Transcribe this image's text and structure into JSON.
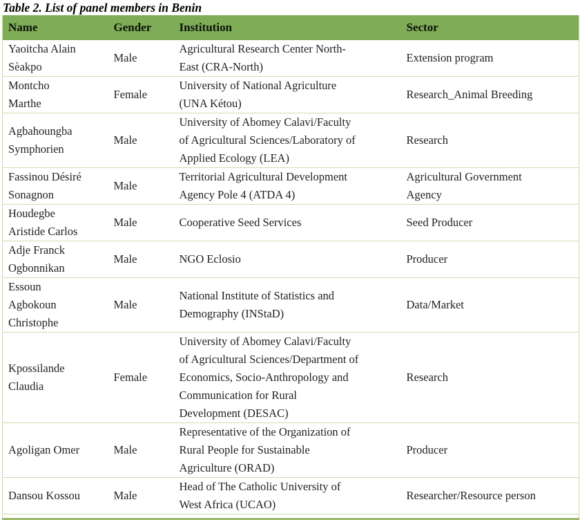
{
  "caption": "Table 2. List of panel members in Benin",
  "table": {
    "columns": [
      "Name",
      "Gender",
      "Institution",
      "Sector"
    ],
    "fields": [
      "name",
      "gender",
      "institution",
      "sector"
    ],
    "rows": [
      {
        "name": "Yaoitcha Alain Sèakpo",
        "gender": "Male",
        "institution": "Agricultural Research Center North-East (CRA-North)",
        "sector": "Extension program"
      },
      {
        "name": "Montcho Marthe",
        "gender": "Female",
        "institution": "University of National Agriculture (UNA Kétou)",
        "sector": "Research_Animal Breeding"
      },
      {
        "name": "Agbahoungba Symphorien",
        "gender": "Male",
        "institution": "University of Abomey Calavi/Faculty of Agricultural Sciences/Laboratory of Applied Ecology (LEA)",
        "sector": "Research"
      },
      {
        "name": "Fassinou Désiré Sonagnon",
        "gender": "Male",
        "institution": "Territorial Agricultural Development Agency Pole 4 (ATDA 4)",
        "sector": "Agricultural Government Agency"
      },
      {
        "name": "Houdegbe Aristide Carlos",
        "gender": "Male",
        "institution": "Cooperative Seed Services",
        "sector": "Seed Producer"
      },
      {
        "name": "Adje Franck Ogbonnikan",
        "gender": "Male",
        "institution": "NGO Eclosio",
        "sector": "Producer"
      },
      {
        "name": "Essoun Agbokoun Christophe",
        "gender": "Male",
        "institution": "National Institute of Statistics and Demography (INStaD)",
        "sector": "Data/Market"
      },
      {
        "name": "Kpossilande Claudia",
        "gender": "Female",
        "institution": "University of Abomey Calavi/Faculty of Agricultural Sciences/Department of Economics, Socio-Anthropology and Communication for Rural Development (DESAC)",
        "sector": "Research"
      },
      {
        "name": "Agoligan Omer",
        "gender": "Male",
        "institution": "Representative of the Organization of Rural People for Sustainable Agriculture (ORAD)",
        "sector": "Producer"
      },
      {
        "name": "Dansou Kossou",
        "gender": "Male",
        "institution": "Head of The Catholic University of West Africa (UCAO)",
        "sector": "Researcher/Resource person"
      }
    ],
    "colors": {
      "header_bg": "#7eac57",
      "row_divider": "#ccddab",
      "bottom_border": "#9bb96e",
      "text": "#1f1f1f"
    }
  }
}
